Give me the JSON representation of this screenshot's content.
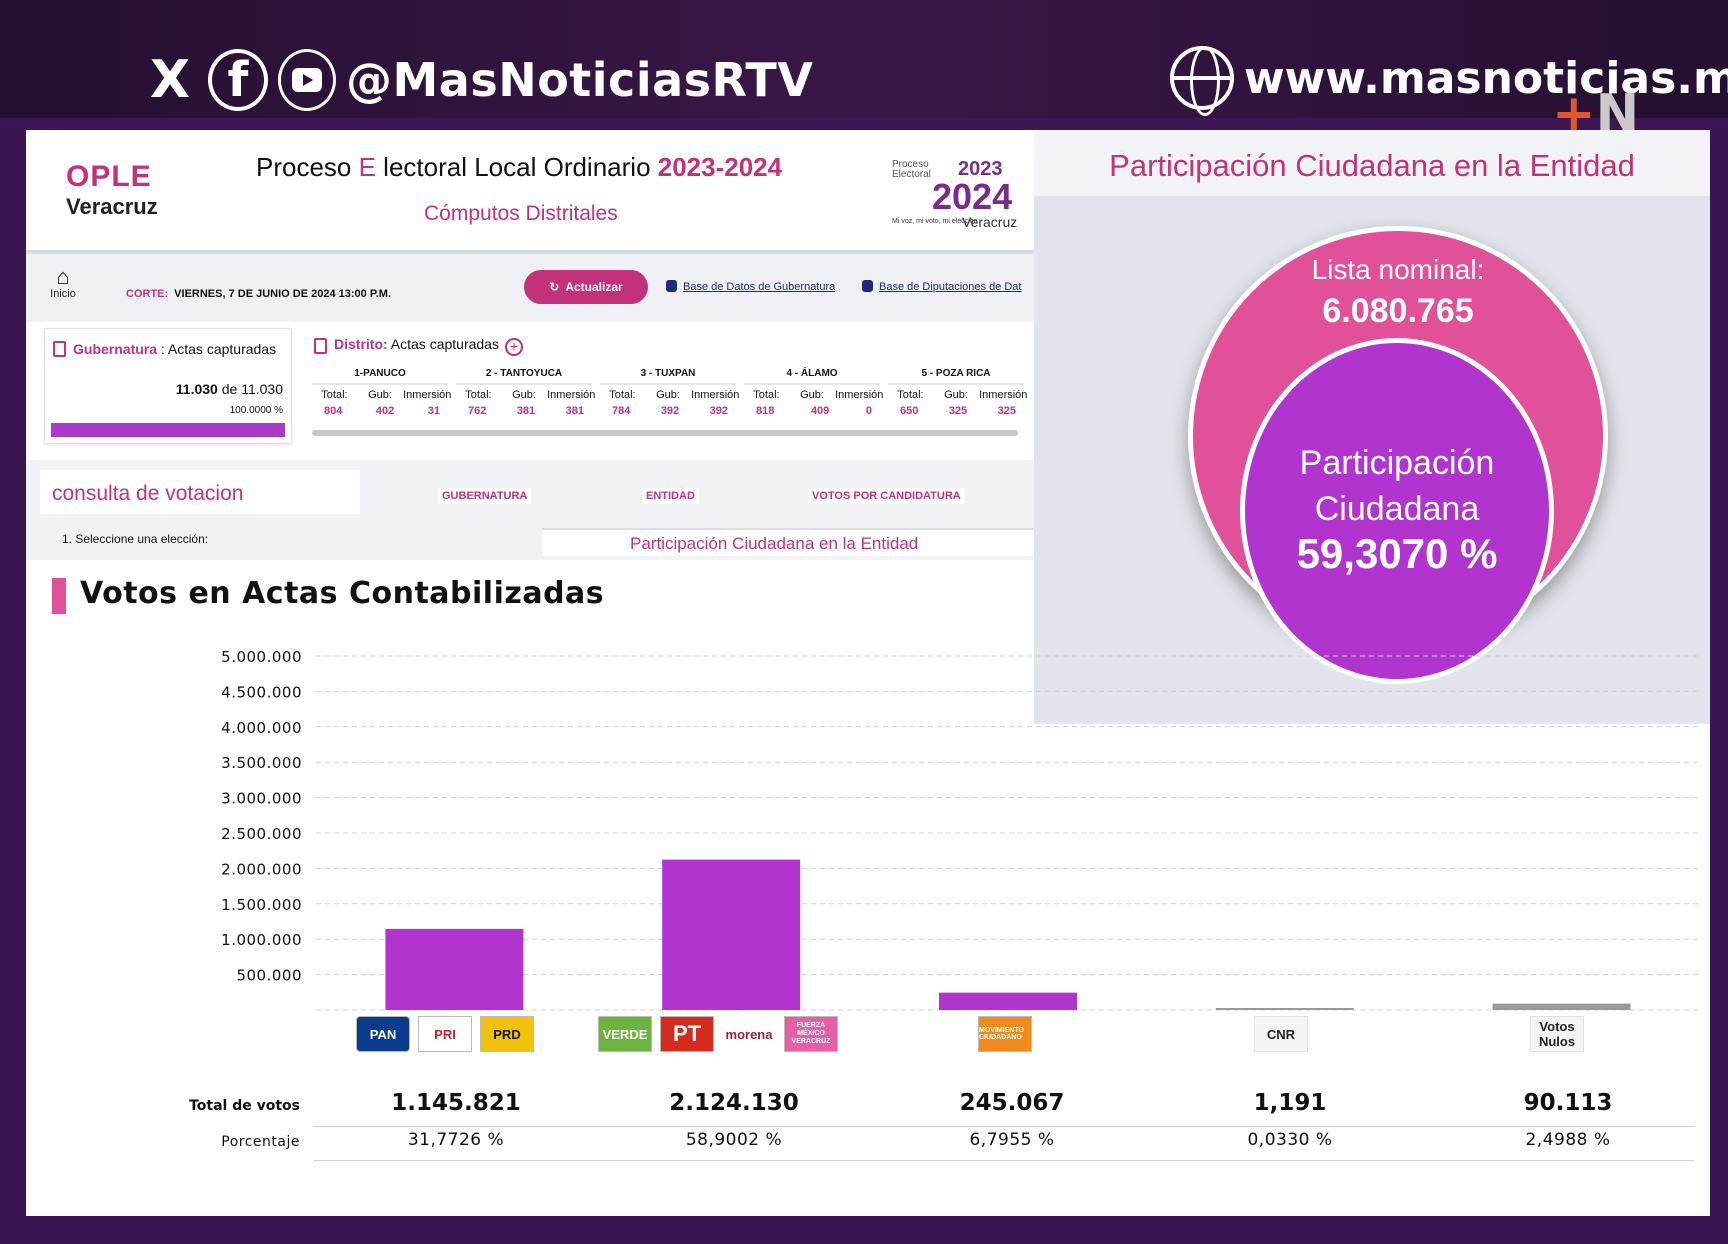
{
  "social": {
    "x_icon": "X",
    "fb_icon": "f",
    "handle": "@MasNoticiasRTV",
    "website": "www.masnoticias.mx"
  },
  "header": {
    "ople_logo_top": "OPLE",
    "ople_logo_bottom": "Veracruz",
    "title_pre": "Proceso ",
    "title_e": "E",
    "title_mid": " lectoral Local Ordinario ",
    "title_year": "2023-2024",
    "subtitle": "Cómputos Distritales",
    "badge_small": "Proceso Electoral",
    "badge_year1": "2023",
    "badge_year2": "2024",
    "badge_state": "Veracruz",
    "badge_tag": "Mi voz, mi voto, mi elección"
  },
  "toolbar": {
    "home_label": "Inicio",
    "corte_label": "CORTE:",
    "corte_date": "VIERNES, 7 DE JUNIO DE 2024 13:00 P.M.",
    "refresh_label": "Actualizar",
    "link_gob": "Base de Datos de Gubernatura",
    "link_dip": "Base de Diputaciones de Dat"
  },
  "gubernatura": {
    "label": "Gubernatura",
    "suffix": " : Actas capturadas",
    "captured": "11.030",
    "of": " de 11.030",
    "percent": "100.0000 %",
    "progress": 1.0
  },
  "distrito": {
    "label": "Distrito:",
    "suffix": " Actas capturadas",
    "plus": "+",
    "col_total": "Total:",
    "col_gub": "Gub:",
    "col_inm": "Inmersión",
    "districts": [
      {
        "name": "1-PANUCO",
        "total": "804",
        "gub": "402",
        "inm": "31"
      },
      {
        "name": "2 - TANTOYUCA",
        "total": "762",
        "gub": "381",
        "inm": "381"
      },
      {
        "name": "3 - TUXPAN",
        "total": "784",
        "gub": "392",
        "inm": "392"
      },
      {
        "name": "4 - ÁLAMO",
        "total": "818",
        "gub": "409",
        "inm": "0"
      },
      {
        "name": "5 - POZA RICA",
        "total": "650",
        "gub": "325",
        "inm": "325"
      }
    ]
  },
  "consulta": {
    "title": "consulta de votacion",
    "tabs": [
      "GUBERNATURA",
      "ENTIDAD",
      "VOTOS POR CANDIDATURA"
    ],
    "select_label": "1. Seleccione una elección:",
    "current": "Participación Ciudadana en la Entidad"
  },
  "participacion": {
    "title": "Participación Ciudadana en la Entidad",
    "nominal_label": "Lista nominal:",
    "nominal_value": "6.080.765",
    "pc_label_1": "Participación",
    "pc_label_2": "Ciudadana",
    "pc_value": "59,3070 %"
  },
  "votes": {
    "title": "Votos en Actas Contabilizadas",
    "total_label": "Total de votos",
    "pct_label": "Porcentaje",
    "logos": {
      "pan": "PAN",
      "pri": "PRI",
      "prd": "PRD",
      "verde": "VERDE",
      "pt": "PT",
      "morena": "morena",
      "fxm": "FUERZA MÉXICO VERACRUZ",
      "mc": "MOVIMIENTO CIUDADANO",
      "cnr": "CNR",
      "vn": "Votos Nulos"
    }
  },
  "colors": {
    "bar": "#b134cf",
    "bar_gray": "#9a9a9a",
    "accent": "#c3317a",
    "pink_circle": "#e0519a"
  },
  "chart_data": {
    "type": "bar",
    "title": "Votos en Actas Contabilizadas",
    "categories": [
      "PAN-PRI-PRD",
      "VERDE-PT-morena-FXM",
      "MC",
      "CNR",
      "Votos Nulos"
    ],
    "values": [
      1145821,
      2124130,
      245067,
      1191,
      90113
    ],
    "values_display": [
      "1.145.821",
      "2.124.130",
      "245.067",
      "1,191",
      "90.113"
    ],
    "percentages": [
      "31,7726 %",
      "58,9002 %",
      "6,7955 %",
      "0,0330 %",
      "2,4988 %"
    ],
    "ylim": [
      0,
      5000000
    ],
    "yticks": [
      "500.000",
      "1.000.000",
      "1.500.000",
      "2.000.000",
      "2.500.000",
      "3.000.000",
      "3.500.000",
      "4.000.000",
      "4.500.000",
      "5.000.000"
    ],
    "grid": true
  }
}
